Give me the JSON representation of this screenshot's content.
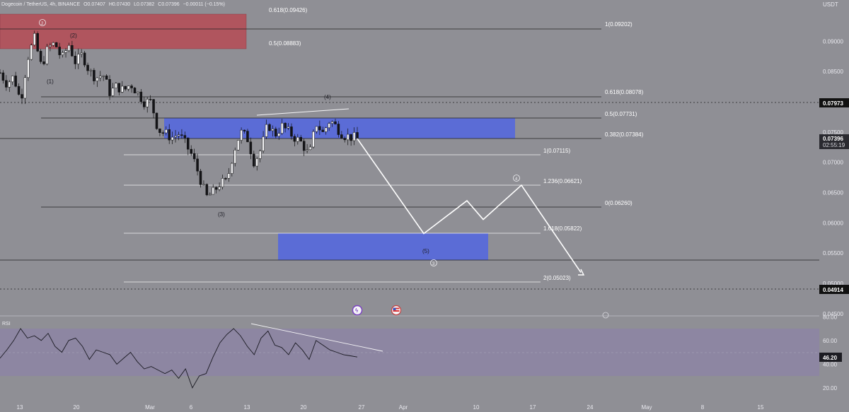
{
  "header": {
    "symbol": "Dogecoin / TetherUS, 4h, BINANCE",
    "open": "O0.07407",
    "high": "H0.07430",
    "low": "L0.07382",
    "close": "C0.07396",
    "change": "−0.00011 (−0.15%)"
  },
  "axis": {
    "currency": "USDT",
    "price_ticks": [
      "0.09000",
      "0.08500",
      "0.07500",
      "0.07000",
      "0.06500",
      "0.06000",
      "0.05500",
      "0.05000",
      "0.04500"
    ],
    "date_ticks": [
      "13",
      "20",
      "Mar",
      "6",
      "13",
      "20",
      "27",
      "Apr",
      "10",
      "17",
      "24",
      "May",
      "8",
      "15"
    ]
  },
  "price_tags": {
    "resistance": "0.07973",
    "last_price": "0.07396",
    "countdown": "02:55:19",
    "support": "0.04914"
  },
  "fib_levels": [
    {
      "label": "0.618(0.09426)"
    },
    {
      "label": "1(0.09202)"
    },
    {
      "label": "0.5(0.08883)"
    },
    {
      "label": "0.618(0.08078)"
    },
    {
      "label": "0.5(0.07731)"
    },
    {
      "label": "0.382(0.07384)"
    },
    {
      "label": "1(0.07115)"
    },
    {
      "label": "1.236(0.06621)"
    },
    {
      "label": "0(0.06260)"
    },
    {
      "label": "1.618(0.05822)"
    },
    {
      "label": "2(0.05023)"
    }
  ],
  "wave_labels": [
    "(1)",
    "(2)",
    "(3)",
    "(4)",
    "(5)",
    "2",
    "3",
    "4"
  ],
  "rsi": {
    "title": "RSI",
    "value": "46.20",
    "ticks": [
      "80.00",
      "60.00",
      "40.00",
      "20.00"
    ]
  },
  "colors": {
    "background": "#8f8f95",
    "supply_zone": "#b0555e",
    "demand_zone": "#5b6cd6",
    "rsi_band": "#8d86a2",
    "projection": "#ffffff"
  },
  "chart_data": {
    "type": "candlestick",
    "symbol": "DOGEUSDT",
    "timeframe": "4h",
    "ylim": [
      0.044,
      0.0955
    ],
    "price_path": [
      0.0848,
      0.083,
      0.0842,
      0.08,
      0.0872,
      0.0905,
      0.0858,
      0.0889,
      0.0897,
      0.087,
      0.0895,
      0.0865,
      0.0878,
      0.085,
      0.084,
      0.0845,
      0.0815,
      0.0826,
      0.0818,
      0.083,
      0.0815,
      0.08,
      0.08,
      0.0754,
      0.0748,
      0.0741,
      0.0747,
      0.073,
      0.071,
      0.0678,
      0.0642,
      0.065,
      0.0665,
      0.0668,
      0.0718,
      0.075,
      0.074,
      0.07,
      0.0722,
      0.0764,
      0.0745,
      0.076,
      0.075,
      0.074,
      0.0731,
      0.071,
      0.0765,
      0.0748,
      0.077,
      0.0758,
      0.0745,
      0.0742,
      0.0739
    ],
    "projection_path": [
      0.0739,
      0.05822,
      0.06365,
      0.06055,
      0.06621,
      0.0518
    ],
    "rsi_path": [
      45,
      52,
      60,
      70,
      62,
      64,
      60,
      66,
      55,
      50,
      60,
      62,
      55,
      44,
      52,
      50,
      48,
      40,
      45,
      50,
      42,
      36,
      38,
      35,
      32,
      35,
      28,
      36,
      20,
      30,
      32,
      46,
      58,
      65,
      70,
      64,
      55,
      48,
      62,
      68,
      56,
      54,
      48,
      58,
      52,
      44,
      60,
      56,
      52,
      50,
      48,
      47,
      46
    ]
  }
}
